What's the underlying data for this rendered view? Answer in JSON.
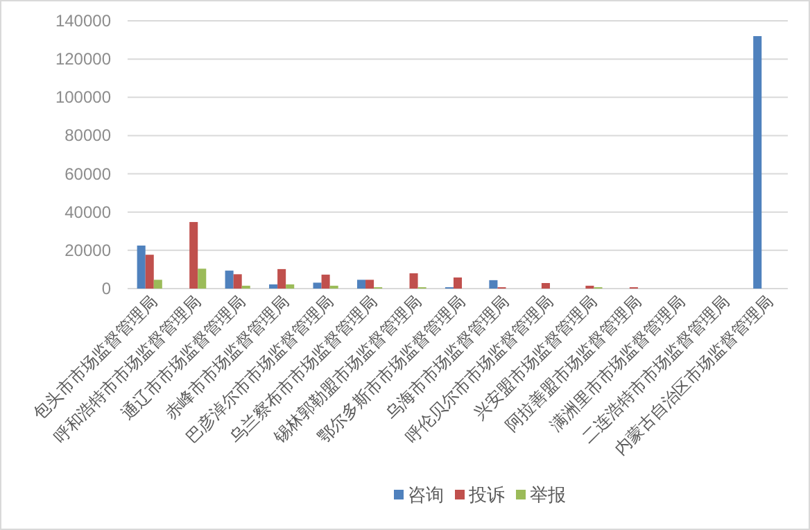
{
  "chart_data": {
    "type": "bar",
    "categories": [
      "包头市市场监督管理局",
      "呼和浩特市市场监督管理局",
      "通辽市市场监督管理局",
      "赤峰市市场监督管理局",
      "巴彦淖尔市市场监督管理局",
      "乌兰察布市市场监督管理局",
      "锡林郭勒盟市场监督管理局",
      "鄂尔多斯市市场监督管理局",
      "乌海市市场监督管理局",
      "呼伦贝尔市市场监督管理局",
      "兴安盟市场监督管理局",
      "阿拉善盟市场监督管理局",
      "满洲里市市场监督管理局",
      "二连浩特市市场监督管理局",
      "内蒙古自治区市场监督管理局"
    ],
    "series": [
      {
        "name": "咨询",
        "color": "#4f81bd",
        "values": [
          22500,
          0,
          9400,
          2200,
          3100,
          4600,
          0,
          700,
          4400,
          0,
          0,
          0,
          0,
          0,
          132000
        ]
      },
      {
        "name": "投诉",
        "color": "#c0504d",
        "values": [
          17700,
          34800,
          7500,
          10200,
          7300,
          4600,
          8000,
          5800,
          700,
          2900,
          1500,
          700,
          0,
          0,
          0
        ]
      },
      {
        "name": "举报",
        "color": "#9bbb59",
        "values": [
          4600,
          10400,
          1500,
          2200,
          1500,
          700,
          700,
          0,
          0,
          0,
          700,
          0,
          0,
          0,
          0
        ]
      }
    ],
    "ylim": [
      0,
      140000
    ],
    "yticks": [
      0,
      20000,
      40000,
      60000,
      80000,
      100000,
      120000,
      140000
    ],
    "grid": "y",
    "legend": "bottom"
  }
}
